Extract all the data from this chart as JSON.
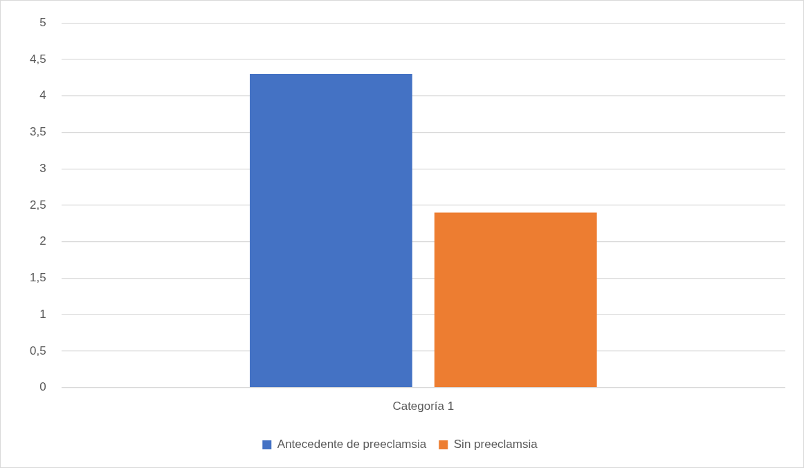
{
  "chart_data": {
    "type": "bar",
    "categories": [
      "Categoría 1"
    ],
    "series": [
      {
        "name": "Antecedente de preeclamsia",
        "color": "#4472c4",
        "values": [
          4.3
        ]
      },
      {
        "name": "Sin preeclamsia",
        "color": "#ed7d31",
        "values": [
          2.4
        ]
      }
    ],
    "ylim": [
      0,
      5
    ],
    "yticks": [
      0,
      {
        "value": 0.5,
        "label": "0,5"
      },
      1,
      {
        "value": 1.5,
        "label": "1,5"
      },
      2,
      {
        "value": 2.5,
        "label": "2,5"
      },
      3,
      {
        "value": 3.5,
        "label": "3,5"
      },
      4,
      {
        "value": 4.5,
        "label": "4,5"
      },
      5
    ],
    "grid": "y",
    "legend": "bottom"
  }
}
